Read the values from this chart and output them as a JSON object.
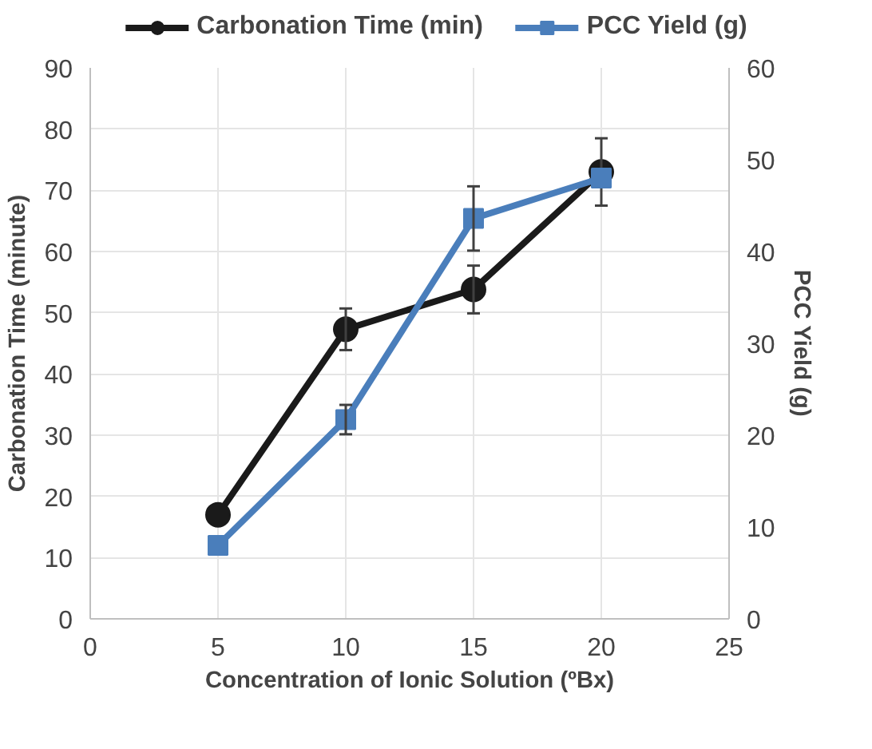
{
  "chart_data": {
    "type": "line",
    "xlabel": "Concentration of Ionic Solution (ºBx)",
    "ylabel": "Carbonation Time (minute)",
    "y2label": "PCC Yield (g)",
    "x": [
      5,
      10,
      15,
      20
    ],
    "series": [
      {
        "name": "Carbonation Time (min)",
        "color": "#1a1a1a",
        "values": [
          17,
          47.3,
          53.8,
          73
        ],
        "errors": [
          null,
          3.4,
          3.9,
          5.5
        ],
        "marker": "circle"
      },
      {
        "name": "PCC Yield (g)",
        "color": "#4a7ebb",
        "values": [
          8,
          21.7,
          43.6,
          48
        ],
        "errors": [
          null,
          1.6,
          3.5,
          null
        ],
        "marker": "square",
        "axis": "y2"
      }
    ],
    "xlim": [
      0,
      25
    ],
    "xticks": [
      0,
      5,
      10,
      15,
      20,
      25
    ],
    "ylim": [
      0,
      90
    ],
    "yticks": [
      0,
      10,
      20,
      30,
      40,
      50,
      60,
      70,
      80,
      90
    ],
    "y2lim": [
      0,
      60
    ],
    "y2ticks": [
      0,
      10,
      20,
      30,
      40,
      50,
      60
    ],
    "grid": true,
    "legend": "top",
    "line_style": "solid"
  }
}
